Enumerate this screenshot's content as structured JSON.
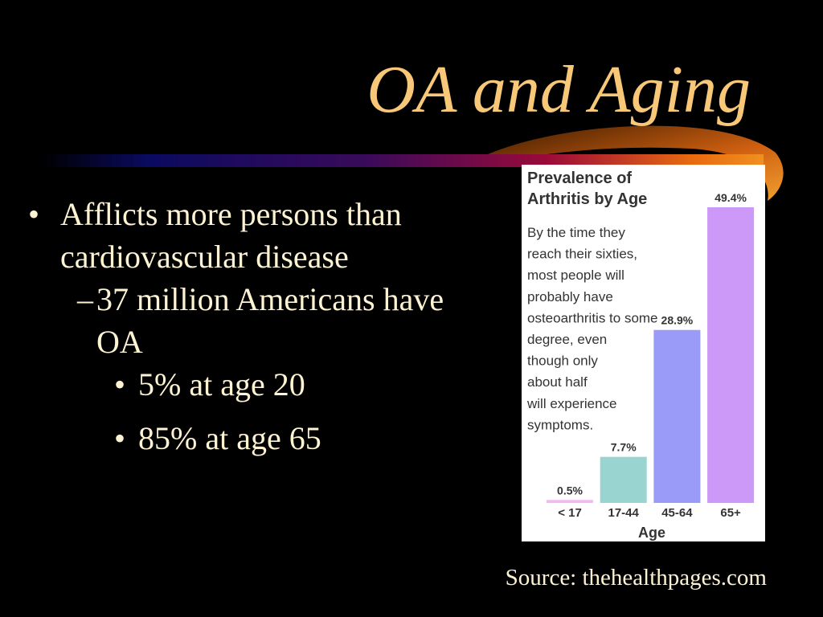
{
  "title": "OA and Aging",
  "bullets": [
    {
      "text": "Afflicts more persons than cardiovascular disease",
      "sub": [
        {
          "text": "37 million Americans have OA",
          "sub": [
            {
              "text": "5% at age 20"
            },
            {
              "text": "85% at age 65"
            }
          ]
        }
      ]
    }
  ],
  "source": "Source: thehealthpages.com",
  "chart_data": {
    "type": "bar",
    "title": [
      "Prevalence of",
      "Arthritis by Age"
    ],
    "annotation": [
      "By the time they",
      "reach their sixties,",
      "most people will",
      "probably have",
      "osteoarthritis to some",
      "degree, even",
      "though only",
      "about half",
      "will experience",
      "symptoms."
    ],
    "x_label": "Age",
    "categories": [
      "< 17",
      "17-44",
      "45-64",
      "65+"
    ],
    "values": [
      0.5,
      7.7,
      28.9,
      49.4
    ],
    "value_labels": [
      "0.5%",
      "7.7%",
      "28.9%",
      "49.4%"
    ],
    "colors": [
      "#f4b8f4",
      "#99d4d0",
      "#9a9af8",
      "#cc99f8"
    ]
  }
}
